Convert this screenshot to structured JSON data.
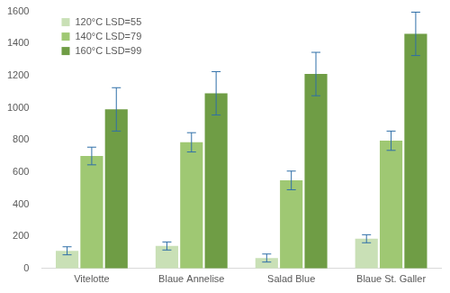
{
  "chart_data": {
    "type": "bar",
    "categories": [
      "Vitelotte",
      "Blaue Annelise",
      "Salad Blue",
      "Blaue St. Galler"
    ],
    "series": [
      {
        "name": "120°C LSD=55",
        "color": "#c9e0b6",
        "values": [
          110,
          140,
          65,
          185
        ],
        "errors": [
          25,
          25,
          25,
          25
        ]
      },
      {
        "name": "140°C LSD=79",
        "color": "#9fc873",
        "values": [
          700,
          785,
          548,
          795
        ],
        "errors": [
          55,
          60,
          58,
          60
        ]
      },
      {
        "name": "160°C LSD=99",
        "color": "#6f9d45",
        "values": [
          990,
          1090,
          1210,
          1460
        ],
        "errors": [
          135,
          135,
          135,
          135
        ]
      }
    ],
    "ylim": [
      0,
      1600
    ],
    "yticks": [
      0,
      200,
      400,
      600,
      800,
      1000,
      1200,
      1400,
      1600
    ],
    "grid": false,
    "legend": "top-left"
  }
}
